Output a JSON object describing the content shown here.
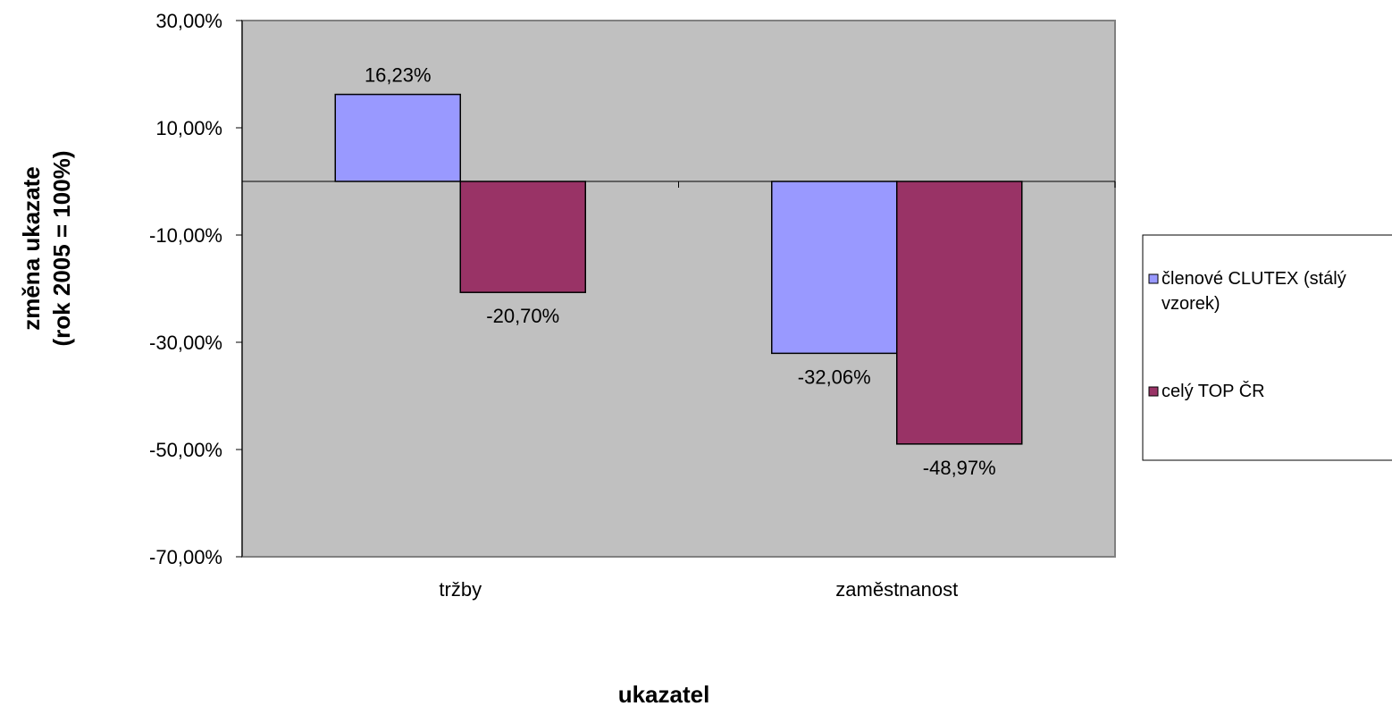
{
  "chart_data": {
    "type": "bar",
    "categories": [
      "tržby",
      "zaměstnanost"
    ],
    "series": [
      {
        "name": "členové CLUTEX (stálý vzorek)",
        "legend_lines": [
          "členové CLUTEX (stálý",
          "vzorek)"
        ],
        "color": "#9999ff",
        "values": [
          16.23,
          -32.06
        ],
        "labels": [
          "16,23%",
          "-32,06%"
        ]
      },
      {
        "name": "celý TOP ČR",
        "legend_lines": [
          "celý TOP ČR"
        ],
        "color": "#993366",
        "values": [
          -20.7,
          -48.97
        ],
        "labels": [
          "-20,70%",
          "-48,97%"
        ]
      }
    ],
    "yticks": [
      30,
      10,
      -10,
      -30,
      -50,
      -70
    ],
    "ytick_labels": [
      "30,00%",
      "10,00%",
      "-10,00%",
      "-30,00%",
      "-50,00%",
      "-70,00%"
    ],
    "ylim": [
      -70,
      30
    ],
    "xlabel": "ukazatel",
    "ylabel_lines": [
      "změna ukazate",
      "(rok 2005 = 100%)"
    ],
    "plot_background": "#c0c0c0",
    "grid": false,
    "legend_position": "right"
  }
}
